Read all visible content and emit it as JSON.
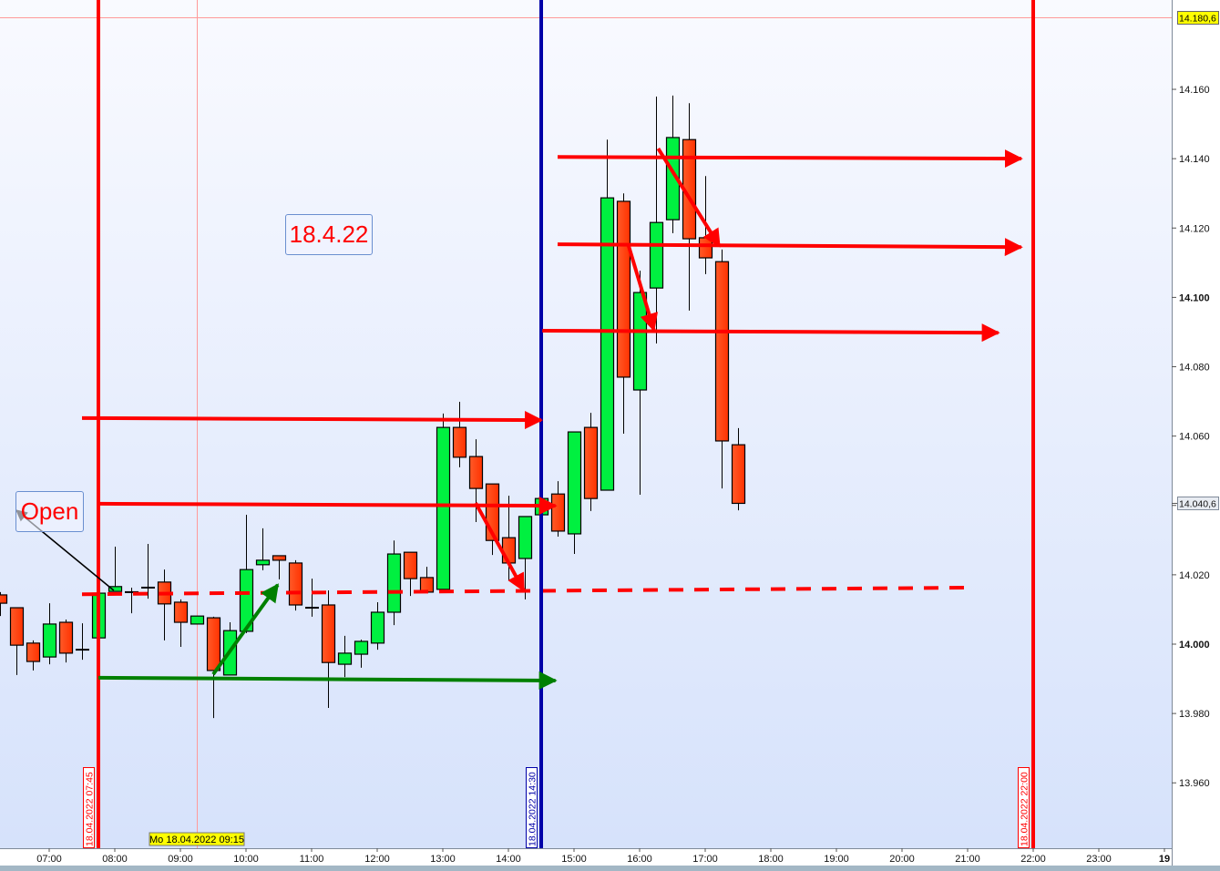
{
  "chart_data": {
    "type": "candlestick",
    "date": "18.04.2022",
    "interval_minutes": 15,
    "ylim": [
      13941.4,
      14185.7
    ],
    "xlim": [
      "06:15",
      "24:06"
    ],
    "grid": false,
    "y_ticks": [
      {
        "value": 13960,
        "label": "13.960",
        "bold": false
      },
      {
        "value": 13980,
        "label": "13.980",
        "bold": false
      },
      {
        "value": 14000,
        "label": "14.000",
        "bold": true
      },
      {
        "value": 14020,
        "label": "14.020",
        "bold": false
      },
      {
        "value": 14040,
        "label": "",
        "bold": false
      },
      {
        "value": 14060,
        "label": "14.060",
        "bold": false
      },
      {
        "value": 14080,
        "label": "14.080",
        "bold": false
      },
      {
        "value": 14100,
        "label": "14.100",
        "bold": true
      },
      {
        "value": 14120,
        "label": "14.120",
        "bold": false
      },
      {
        "value": 14140,
        "label": "14.140",
        "bold": false
      },
      {
        "value": 14160,
        "label": "14.160",
        "bold": false
      }
    ],
    "x_ticks": [
      {
        "time": "07:00",
        "label": "07:00"
      },
      {
        "time": "08:00",
        "label": "08:00"
      },
      {
        "time": "09:00",
        "label": "09:00"
      },
      {
        "time": "10:00",
        "label": "10:00"
      },
      {
        "time": "11:00",
        "label": "11:00"
      },
      {
        "time": "12:00",
        "label": "12:00"
      },
      {
        "time": "13:00",
        "label": "13:00"
      },
      {
        "time": "14:00",
        "label": "14:00"
      },
      {
        "time": "15:00",
        "label": "15:00"
      },
      {
        "time": "16:00",
        "label": "16:00"
      },
      {
        "time": "17:00",
        "label": "17:00"
      },
      {
        "time": "18:00",
        "label": "18:00"
      },
      {
        "time": "19:00",
        "label": "19:00"
      },
      {
        "time": "20:00",
        "label": "20:00"
      },
      {
        "time": "21:00",
        "label": "21:00"
      },
      {
        "time": "22:00",
        "label": "22:00"
      },
      {
        "time": "23:00",
        "label": "23:00"
      },
      {
        "time": "24:00",
        "label": "19",
        "bold": true
      }
    ],
    "candles": [
      {
        "t": "06:15",
        "o": 14014.2,
        "h": 14015.0,
        "l": 14008.1,
        "c": 14011.8
      },
      {
        "t": "06:30",
        "o": 14010.5,
        "h": 14010.5,
        "l": 13991.1,
        "c": 13999.7
      },
      {
        "t": "06:45",
        "o": 14000.3,
        "h": 14001.1,
        "l": 13992.4,
        "c": 13995.0
      },
      {
        "t": "07:00",
        "o": 13996.3,
        "h": 14011.8,
        "l": 13994.2,
        "c": 14005.8
      },
      {
        "t": "07:15",
        "o": 14006.3,
        "h": 14007.1,
        "l": 13994.7,
        "c": 13997.4
      },
      {
        "t": "07:30",
        "o": 13998.4,
        "h": 14006.0,
        "l": 13995.5,
        "c": 13998.4
      },
      {
        "t": "07:45",
        "o": 14001.8,
        "h": 14014.7,
        "l": 14001.8,
        "c": 14014.7
      },
      {
        "t": "08:00",
        "o": 14015.2,
        "h": 14028.1,
        "l": 14015.2,
        "c": 14016.6
      },
      {
        "t": "08:15",
        "o": 14015.0,
        "h": 14016.3,
        "l": 14008.9,
        "c": 14015.0
      },
      {
        "t": "08:30",
        "o": 14016.3,
        "h": 14028.9,
        "l": 14013.1,
        "c": 14016.3
      },
      {
        "t": "08:45",
        "o": 14017.9,
        "h": 14021.5,
        "l": 14001.1,
        "c": 14011.6
      },
      {
        "t": "09:00",
        "o": 14012.1,
        "h": 14012.9,
        "l": 13999.2,
        "c": 14006.3
      },
      {
        "t": "09:15",
        "o": 14005.8,
        "h": 14008.1,
        "l": 14005.8,
        "c": 14008.1
      },
      {
        "t": "09:30",
        "o": 14007.6,
        "h": 14007.9,
        "l": 13978.7,
        "c": 13992.4
      },
      {
        "t": "09:45",
        "o": 13991.1,
        "h": 14006.3,
        "l": 13991.1,
        "c": 14003.9
      },
      {
        "t": "10:00",
        "o": 14003.7,
        "h": 14037.3,
        "l": 14003.2,
        "c": 14021.5
      },
      {
        "t": "10:15",
        "o": 14022.9,
        "h": 14033.4,
        "l": 14021.3,
        "c": 14024.2
      },
      {
        "t": "10:30",
        "o": 14025.5,
        "h": 14025.5,
        "l": 14018.7,
        "c": 14024.2
      },
      {
        "t": "10:45",
        "o": 14023.4,
        "h": 14024.2,
        "l": 14009.7,
        "c": 14011.3
      },
      {
        "t": "11:00",
        "o": 14010.5,
        "h": 14018.9,
        "l": 14007.9,
        "c": 14010.5
      },
      {
        "t": "11:15",
        "o": 14011.3,
        "h": 14015.5,
        "l": 13981.6,
        "c": 13994.7
      },
      {
        "t": "11:30",
        "o": 13994.2,
        "h": 14002.4,
        "l": 13990.5,
        "c": 13997.4
      },
      {
        "t": "11:45",
        "o": 13997.1,
        "h": 14001.3,
        "l": 13993.2,
        "c": 14000.8
      },
      {
        "t": "12:00",
        "o": 14000.3,
        "h": 14012.1,
        "l": 13998.4,
        "c": 14009.2
      },
      {
        "t": "12:15",
        "o": 14009.2,
        "h": 14029.9,
        "l": 14005.5,
        "c": 14026.0
      },
      {
        "t": "12:30",
        "o": 14026.5,
        "h": 14026.5,
        "l": 14013.9,
        "c": 14018.9
      },
      {
        "t": "12:45",
        "o": 14019.2,
        "h": 14022.3,
        "l": 14015.0,
        "c": 14015.0
      },
      {
        "t": "13:00",
        "o": 14015.8,
        "h": 14066.5,
        "l": 14015.8,
        "c": 14062.5
      },
      {
        "t": "13:15",
        "o": 14062.5,
        "h": 14069.9,
        "l": 14051.0,
        "c": 14053.9
      },
      {
        "t": "13:30",
        "o": 14054.1,
        "h": 14059.1,
        "l": 14035.2,
        "c": 14044.9
      },
      {
        "t": "13:45",
        "o": 14046.2,
        "h": 14046.2,
        "l": 14025.7,
        "c": 14029.9
      },
      {
        "t": "14:00",
        "o": 14030.7,
        "h": 14042.8,
        "l": 14018.4,
        "c": 14023.4
      },
      {
        "t": "14:15",
        "o": 14024.7,
        "h": 14036.8,
        "l": 14012.9,
        "c": 14036.8
      },
      {
        "t": "14:30",
        "o": 14037.3,
        "h": 14042.0,
        "l": 14037.3,
        "c": 14042.0
      },
      {
        "t": "14:45",
        "o": 14043.3,
        "h": 14047.0,
        "l": 14031.0,
        "c": 14032.6
      },
      {
        "t": "15:00",
        "o": 14031.8,
        "h": 14061.2,
        "l": 14026.0,
        "c": 14061.2
      },
      {
        "t": "15:15",
        "o": 14062.5,
        "h": 14066.7,
        "l": 14038.4,
        "c": 14042.0
      },
      {
        "t": "15:30",
        "o": 14044.4,
        "h": 14145.5,
        "l": 14044.4,
        "c": 14128.7
      },
      {
        "t": "15:45",
        "o": 14127.7,
        "h": 14130.0,
        "l": 14060.7,
        "c": 14077.0
      },
      {
        "t": "16:00",
        "o": 14073.3,
        "h": 14107.7,
        "l": 14043.1,
        "c": 14101.4
      },
      {
        "t": "16:15",
        "o": 14102.7,
        "h": 14157.9,
        "l": 14086.7,
        "c": 14121.6
      },
      {
        "t": "16:30",
        "o": 14122.4,
        "h": 14158.2,
        "l": 14118.5,
        "c": 14146.1
      },
      {
        "t": "16:45",
        "o": 14145.5,
        "h": 14156.0,
        "l": 14096.2,
        "c": 14116.9
      },
      {
        "t": "17:00",
        "o": 14117.2,
        "h": 14135.0,
        "l": 14106.7,
        "c": 14111.4
      },
      {
        "t": "17:15",
        "o": 14110.3,
        "h": 14113.8,
        "l": 14044.9,
        "c": 14058.6
      },
      {
        "t": "17:30",
        "o": 14057.5,
        "h": 14062.3,
        "l": 14038.6,
        "c": 14040.6
      }
    ],
    "vertical_lines": [
      {
        "time": "07:45",
        "color": "#ff0000",
        "label": "18.04.2022 07:45"
      },
      {
        "time": "14:30",
        "color": "#0000a8",
        "label": "18.04.2022 14:30"
      },
      {
        "time": "22:00",
        "color": "#ff0000",
        "label": "18.04.2022 22:00"
      }
    ],
    "arrows": [
      {
        "from": [
          "07:30",
          14065.2
        ],
        "to": [
          "14:30",
          14064.6
        ],
        "color": "#ff0000"
      },
      {
        "from": [
          "07:45",
          14040.5
        ],
        "to": [
          "14:43",
          14039.9
        ],
        "color": "#ff0000"
      },
      {
        "from": [
          "07:45",
          13990.3
        ],
        "to": [
          "14:43",
          13989.5
        ],
        "color": "#008000"
      },
      {
        "from": [
          "14:31",
          14090.4
        ],
        "to": [
          "21:28",
          14089.8
        ],
        "color": "#ff0000"
      },
      {
        "from": [
          "14:45",
          14115.3
        ],
        "to": [
          "21:49",
          14114.5
        ],
        "color": "#ff0000"
      },
      {
        "from": [
          "14:45",
          14140.5
        ],
        "to": [
          "21:49",
          14140.0
        ],
        "color": "#ff0000"
      },
      {
        "from": [
          "13:30",
          14040.7
        ],
        "to": [
          "14:14",
          14015.5
        ],
        "color": "#ff0000"
      },
      {
        "from": [
          "15:50",
          14114.8
        ],
        "to": [
          "16:13",
          14090.6
        ],
        "color": "#ff0000"
      },
      {
        "from": [
          "16:17",
          14142.9
        ],
        "to": [
          "17:13",
          14114.8
        ],
        "color": "#ff0000"
      },
      {
        "from": [
          "09:30",
          13991.3
        ],
        "to": [
          "10:29",
          14017.1
        ],
        "color": "#008000"
      },
      {
        "from": [
          "07:59",
          14015.5
        ],
        "to": [
          "06:30",
          14038.6
        ],
        "color": "#000000",
        "thin": true
      }
    ],
    "dashed_lines": [
      {
        "from": [
          "07:30",
          14014.4
        ],
        "to": [
          "21:05",
          14016.3
        ],
        "color": "#ff0000"
      }
    ],
    "text_annotations": [
      {
        "text": "18.4.22",
        "color": "#ff0000"
      },
      {
        "text": "Open",
        "color": "#ff0000"
      }
    ],
    "crosshair": {
      "time_label": "Mo 18.04.2022 09:15",
      "price_label": "14.180,6"
    },
    "last_price_label": "14.040,6",
    "colors": {
      "up": "#00f040",
      "down": "#ff4418",
      "background_top": "#f9faff",
      "background_bottom": "#d6e2fb"
    }
  }
}
